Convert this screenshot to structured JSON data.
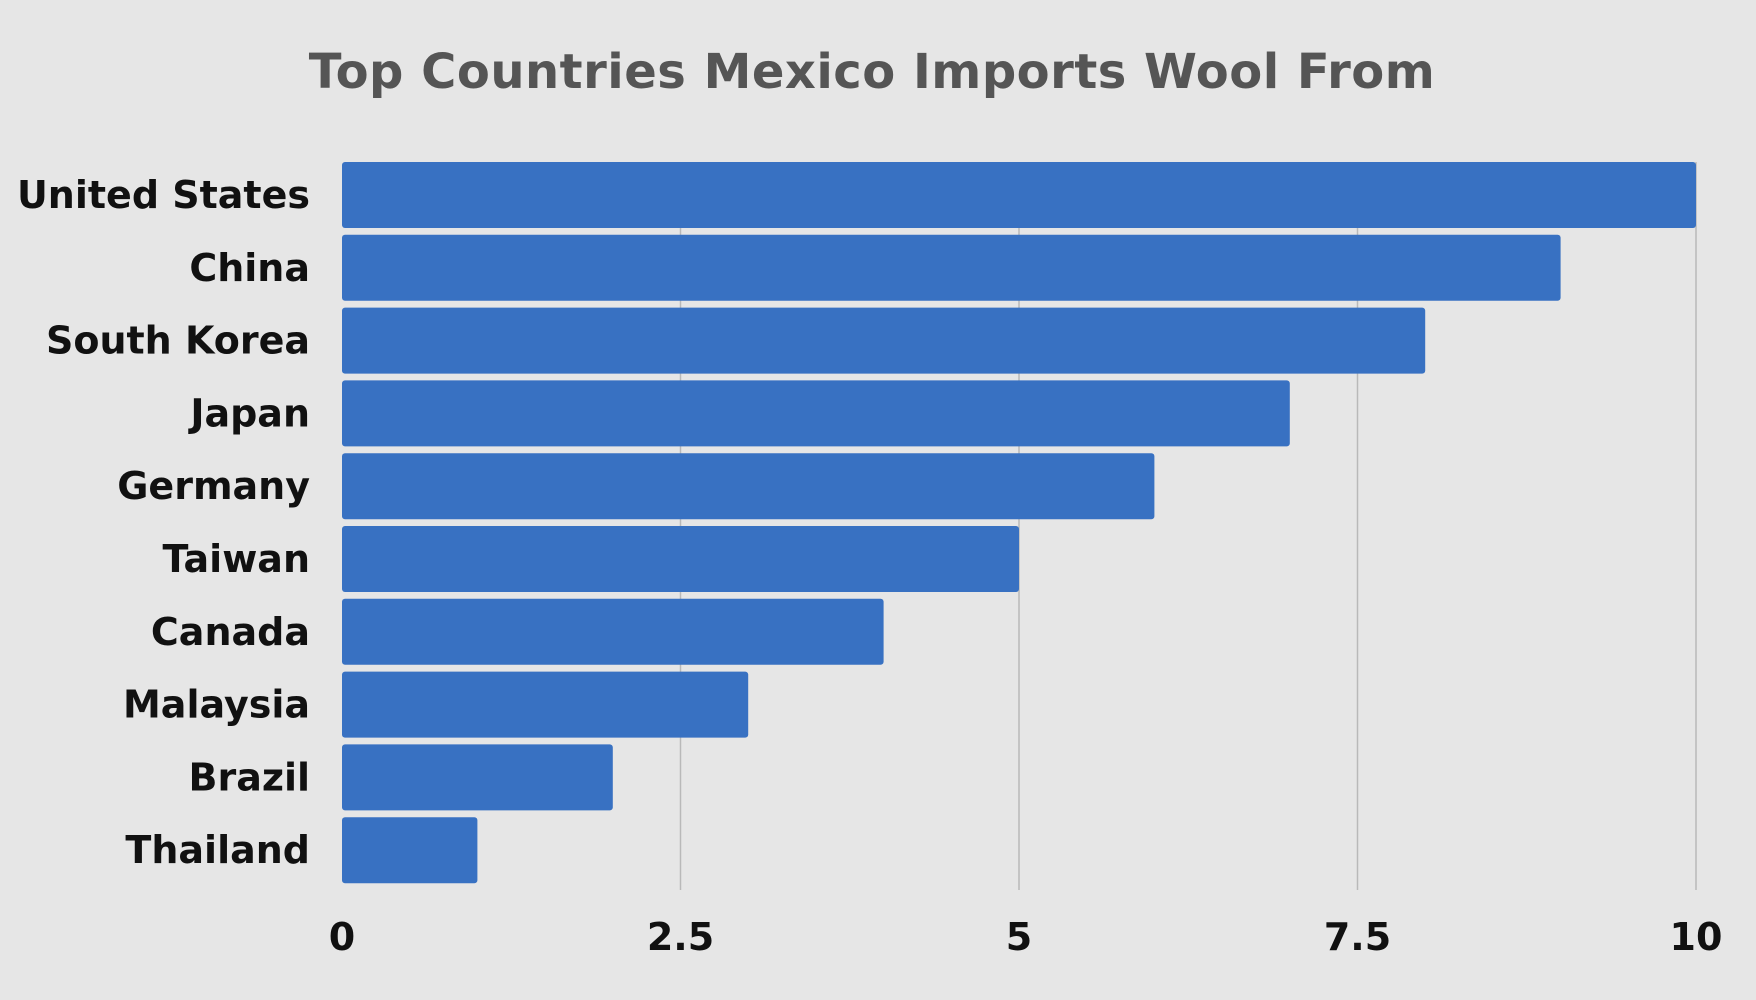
{
  "chart_data": {
    "type": "bar",
    "orientation": "horizontal",
    "title": "Top Countries Mexico Imports Wool From",
    "xlabel": "",
    "ylabel": "",
    "categories": [
      "United States",
      "China",
      "South Korea",
      "Japan",
      "Germany",
      "Taiwan",
      "Canada",
      "Malaysia",
      "Brazil",
      "Thailand"
    ],
    "values": [
      10,
      9,
      8,
      7,
      6,
      5,
      4,
      3,
      2,
      1
    ],
    "xlim": [
      0,
      10
    ],
    "x_ticks": [
      0,
      2.5,
      5,
      7.5,
      10
    ],
    "x_tick_labels": [
      "0",
      "2.5",
      "5",
      "7.5",
      "10"
    ],
    "grid": "vertical",
    "legend": "none",
    "colors": {
      "bar": "#3871c2",
      "background": "#e6e6e6",
      "title": "#555555",
      "label": "#111111",
      "grid": "#b9b9b9"
    }
  }
}
